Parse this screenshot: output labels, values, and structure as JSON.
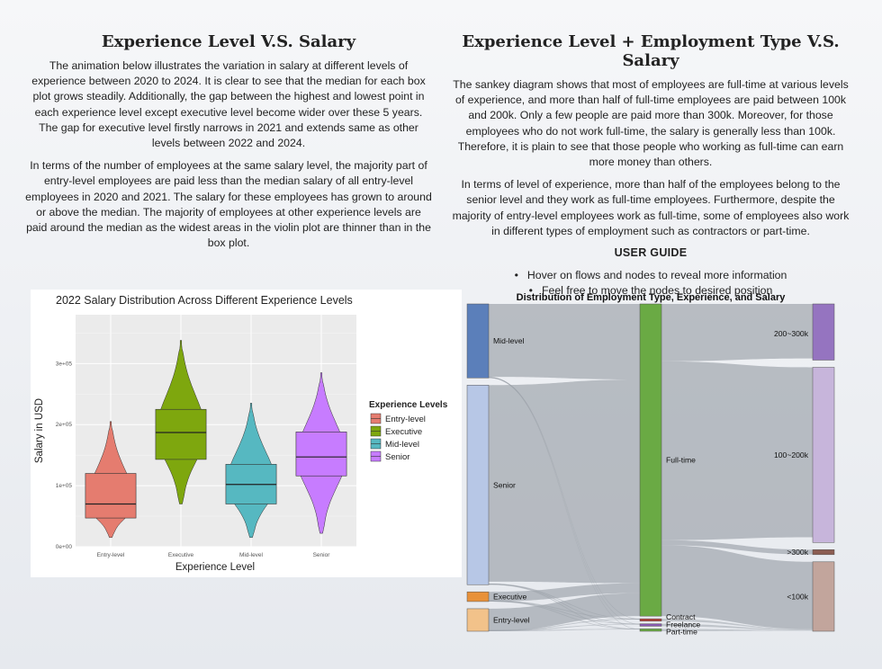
{
  "left": {
    "title": "Experience Level V.S. Salary",
    "p1": "The animation below illustrates the variation in salary at different levels of experience between 2020 to 2024. It is clear to see that the median for each box plot grows steadily. Additionally, the gap between the highest and lowest point in each experience level except executive level become wider over these 5 years. The gap for executive level firstly narrows in 2021 and extends same as other levels between 2022 and 2024.",
    "p2": "In terms of the number of employees at the same salary level, the majority part of entry-level employees are paid less than the median salary of all entry-level employees in 2020 and 2021. The salary for these employees has grown to around or above the median. The majority of employees at other experience levels are paid around the median as the widest areas in the violin plot are thinner than in the box plot."
  },
  "right": {
    "title": "Experience Level + Employment Type V.S. Salary",
    "p1": "The sankey diagram shows that most of employees are full-time at various levels of experience, and more than half of full-time employees are paid between 100k and 200k. Only a few people are paid more than 300k. Moreover, for those employees who do not work full-time, the salary is generally less than 100k. Therefore, it is plain to see that those people who working as full-time can earn more money than others.",
    "p2": "In terms of level of experience, more than half of the employees belong to the senior level and they work as full-time employees. Furthermore, despite the majority of entry-level employees work as full-time, some of employees also work in different types of employment such as contractors or part-time.",
    "guide_title": "USER GUIDE",
    "guide": [
      "Hover on flows and nodes to reveal more information",
      "Feel free to move the nodes to desired position"
    ]
  },
  "chart_data": [
    {
      "type": "violin",
      "title": "2022 Salary Distribution Across Different Experience Levels",
      "xlabel": "Experience Level",
      "ylabel": "Salary in USD",
      "ylim": [
        0,
        380000
      ],
      "y_ticks": [
        0,
        100000,
        200000,
        300000
      ],
      "y_tick_labels": [
        "0e+00",
        "1e+05",
        "2e+05",
        "3e+05"
      ],
      "grid": true,
      "legend_title": "Experience Levels",
      "legend_position": "right",
      "legend": [
        "Entry-level",
        "Executive",
        "Mid-level",
        "Senior"
      ],
      "categories": [
        "Entry-level",
        "Executive",
        "Mid-level",
        "Senior"
      ],
      "colors": [
        "#e57c6f",
        "#7ea70e",
        "#56b8c1",
        "#c77cff"
      ],
      "box": [
        {
          "q1": 47000,
          "median": 70000,
          "q3": 120000
        },
        {
          "q1": 143000,
          "median": 187000,
          "q3": 225000
        },
        {
          "q1": 70000,
          "median": 102000,
          "q3": 135000
        },
        {
          "q1": 116000,
          "median": 147000,
          "q3": 188000
        }
      ],
      "violin": [
        {
          "min": 15000,
          "max": 205000
        },
        {
          "min": 70000,
          "max": 338000
        },
        {
          "min": 15000,
          "max": 235000
        },
        {
          "min": 22000,
          "max": 285000
        }
      ]
    },
    {
      "type": "sankey",
      "title": "Distribution of Employment Type, Experience, and Salary",
      "experience_nodes": [
        {
          "name": "Mid-level",
          "value": 23,
          "color": "#5b7fba"
        },
        {
          "name": "Senior",
          "value": 62,
          "color": "#b7c7e6"
        },
        {
          "name": "Executive",
          "value": 3,
          "color": "#e8913a"
        },
        {
          "name": "Entry-level",
          "value": 7,
          "color": "#f2c28a"
        }
      ],
      "employment_nodes": [
        {
          "name": "Full-time",
          "value": 93,
          "color": "#6aaa44"
        },
        {
          "name": "Contract",
          "value": 0.7,
          "color": "#b43f37"
        },
        {
          "name": "Freelance",
          "value": 0.7,
          "color": "#8a5bb0"
        },
        {
          "name": "Part-time",
          "value": 0.7,
          "color": "#6aaa44"
        }
      ],
      "salary_nodes": [
        {
          "name": "200~300k",
          "value": 17,
          "color": "#9574c0"
        },
        {
          "name": "100~200k",
          "value": 53,
          "color": "#c7b5db"
        },
        {
          "name": ">300k",
          "value": 1.5,
          "color": "#8c5d52"
        },
        {
          "name": "<100k",
          "value": 21,
          "color": "#c2a59c"
        }
      ]
    }
  ]
}
